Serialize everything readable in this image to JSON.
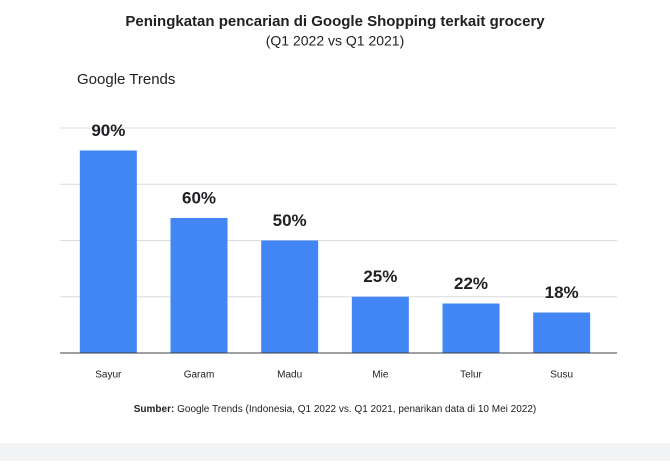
{
  "chart_data": {
    "type": "bar",
    "title": "Peningkatan pencarian di Google Shopping terkait grocery",
    "subtitle": "(Q1 2022 vs Q1 2021)",
    "brand_label": "Google Trends",
    "categories": [
      "Sayur",
      "Garam",
      "Madu",
      "Mie",
      "Telur",
      "Susu"
    ],
    "values": [
      90,
      60,
      50,
      25,
      22,
      18
    ],
    "value_labels": [
      "90%",
      "60%",
      "50%",
      "25%",
      "22%",
      "18%"
    ],
    "color": "#4285f4",
    "ylim": [
      0,
      100
    ],
    "yticks": [
      0,
      25,
      50,
      75,
      100
    ],
    "grid": true,
    "source_label": "Sumber:",
    "source_text": "Google Trends (Indonesia, Q1 2022 vs. Q1 2021, penarikan data di 10 Mei 2022)"
  }
}
